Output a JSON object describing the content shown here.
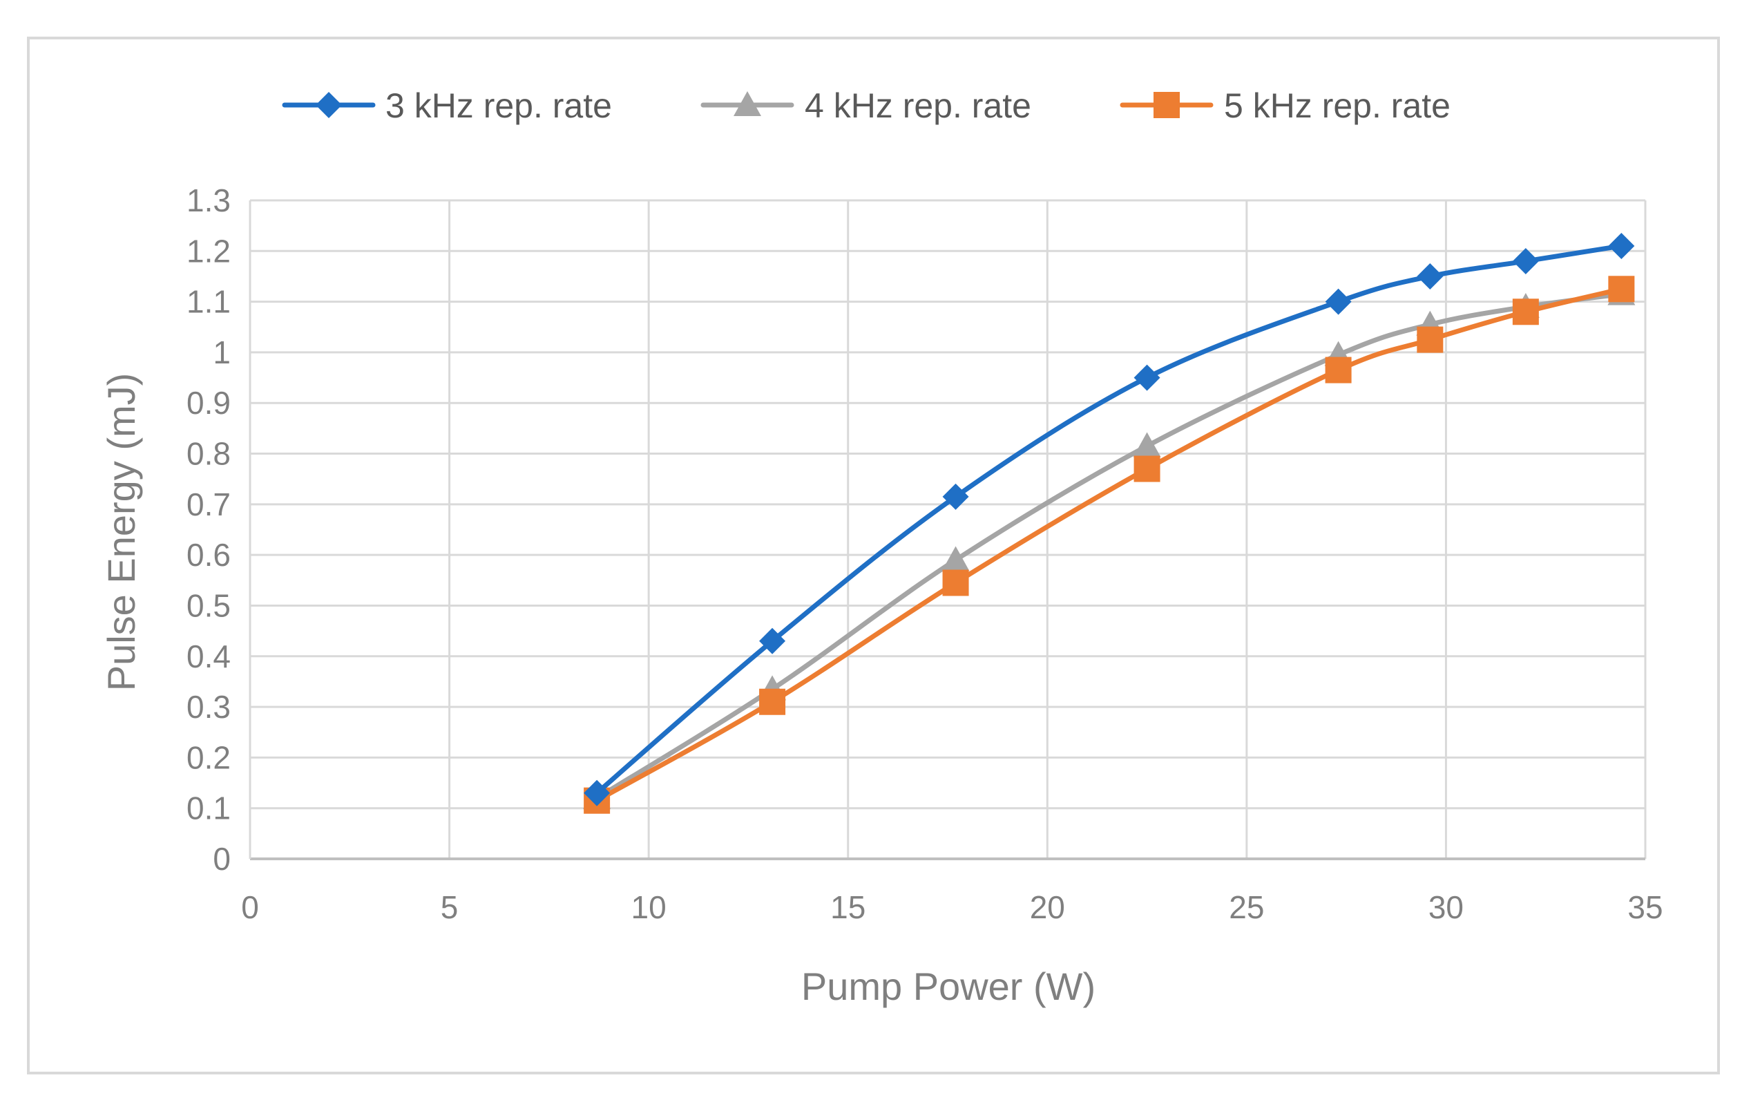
{
  "chart_data": {
    "type": "line",
    "title": "",
    "xlabel": "Pump Power (W)",
    "ylabel": "Pulse Energy (mJ)",
    "xlim": [
      0,
      35
    ],
    "ylim": [
      0,
      1.3
    ],
    "xticks": [
      0,
      5,
      10,
      15,
      20,
      25,
      30,
      35
    ],
    "yticks": [
      0,
      0.1,
      0.2,
      0.3,
      0.4,
      0.5,
      0.6,
      0.7,
      0.8,
      0.9,
      1,
      1.1,
      1.2,
      1.3
    ],
    "xtick_labels": [
      "0",
      "5",
      "10",
      "15",
      "20",
      "25",
      "30",
      "35"
    ],
    "ytick_labels": [
      "0",
      "0.1",
      "0.2",
      "0.3",
      "0.4",
      "0.5",
      "0.6",
      "0.7",
      "0.8",
      "0.9",
      "1",
      "1.1",
      "1.2",
      "1.3"
    ],
    "grid": true,
    "legend_position": "top-center",
    "series": [
      {
        "name": "3 kHz rep. rate",
        "color": "#1f6fc5",
        "marker": "diamond",
        "x": [
          8.7,
          13.1,
          17.7,
          22.5,
          27.3,
          29.6,
          32.0,
          34.4
        ],
        "y": [
          0.13,
          0.43,
          0.715,
          0.95,
          1.1,
          1.15,
          1.18,
          1.21
        ]
      },
      {
        "name": "4 kHz rep. rate",
        "color": "#a5a5a5",
        "marker": "triangle",
        "x": [
          8.7,
          13.1,
          17.7,
          22.5,
          27.3,
          29.6,
          32.0,
          34.4
        ],
        "y": [
          0.12,
          0.335,
          0.59,
          0.815,
          0.995,
          1.055,
          1.09,
          1.115
        ]
      },
      {
        "name": "5 kHz rep. rate",
        "color": "#ed7d31",
        "marker": "square",
        "x": [
          8.7,
          13.1,
          17.7,
          22.5,
          27.3,
          29.6,
          32.0,
          34.4
        ],
        "y": [
          0.115,
          0.31,
          0.545,
          0.77,
          0.965,
          1.025,
          1.08,
          1.125
        ]
      }
    ]
  }
}
